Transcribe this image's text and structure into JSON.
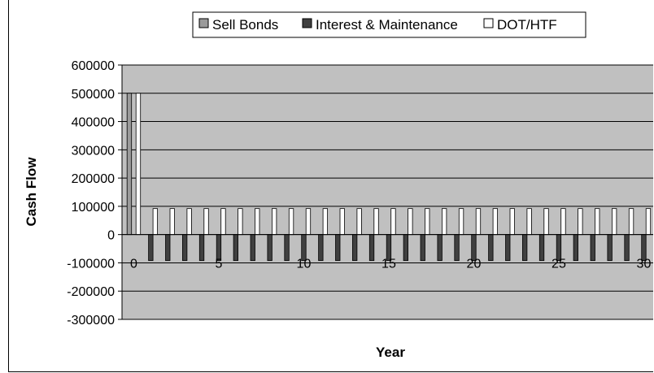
{
  "chart_data": {
    "type": "bar",
    "title": "",
    "xlabel": "Year",
    "ylabel": "Cash Flow",
    "ylim": [
      -300000,
      600000
    ],
    "ytick_step": 100000,
    "x_tick_labels": [
      "0",
      "5",
      "10",
      "15",
      "20",
      "25",
      "30"
    ],
    "categories": [
      0,
      1,
      2,
      3,
      4,
      5,
      6,
      7,
      8,
      9,
      10,
      11,
      12,
      13,
      14,
      15,
      16,
      17,
      18,
      19,
      20,
      21,
      22,
      23,
      24,
      25,
      26,
      27,
      28,
      29,
      30
    ],
    "series": [
      {
        "name": "Sell Bonds",
        "color": "#9a9a9a",
        "values": [
          500000,
          0,
          0,
          0,
          0,
          0,
          0,
          0,
          0,
          0,
          0,
          0,
          0,
          0,
          0,
          0,
          0,
          0,
          0,
          0,
          0,
          0,
          0,
          0,
          0,
          0,
          0,
          0,
          0,
          0,
          0
        ]
      },
      {
        "name": "Interest & Maintenance",
        "color": "#404040",
        "values": [
          0,
          -92000,
          -92000,
          -92000,
          -92000,
          -92000,
          -92000,
          -92000,
          -92000,
          -92000,
          -92000,
          -92000,
          -92000,
          -92000,
          -92000,
          -92000,
          -92000,
          -92000,
          -92000,
          -92000,
          -92000,
          -92000,
          -92000,
          -92000,
          -92000,
          -92000,
          -92000,
          -92000,
          -92000,
          -92000,
          -92000
        ]
      },
      {
        "name": "DOT/HTF",
        "color": "#ffffff",
        "values": [
          500000,
          92000,
          92000,
          92000,
          92000,
          92000,
          92000,
          92000,
          92000,
          92000,
          92000,
          92000,
          92000,
          92000,
          92000,
          92000,
          92000,
          92000,
          92000,
          92000,
          92000,
          92000,
          92000,
          92000,
          92000,
          92000,
          92000,
          92000,
          92000,
          92000,
          92000
        ]
      }
    ],
    "grid": true,
    "plot_background": "#c0c0c0",
    "legend_position": "top"
  }
}
